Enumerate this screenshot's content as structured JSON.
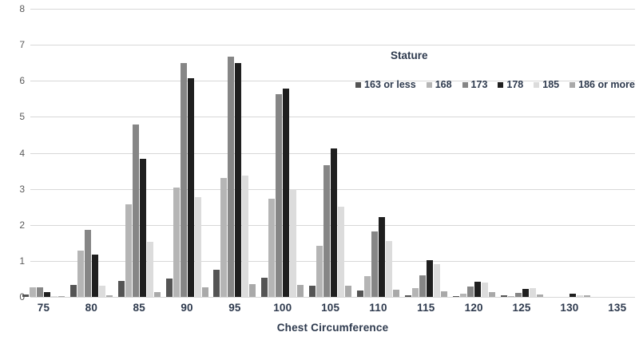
{
  "chart_data": {
    "type": "bar",
    "title": "",
    "legend_title": "Stature",
    "xlabel": "Chest Circumference",
    "ylabel": "",
    "grid": "horizontal",
    "legend_position": "top-right",
    "ylim": [
      0,
      8
    ],
    "yticks": [
      "0",
      "1",
      "2",
      "3",
      "4",
      "5",
      "6",
      "7",
      "8"
    ],
    "categories": [
      "75",
      "80",
      "85",
      "90",
      "95",
      "100",
      "105",
      "110",
      "115",
      "120",
      "125",
      "130",
      "135"
    ],
    "series": [
      {
        "name": "163 or less",
        "color": "#545454",
        "values": [
          0.07,
          0.33,
          0.45,
          0.52,
          0.75,
          0.53,
          0.3,
          0.17,
          0.05,
          0.02,
          0.05,
          0.0,
          0.0
        ]
      },
      {
        "name": "168",
        "color": "#b5b5b5",
        "values": [
          0.26,
          1.29,
          2.58,
          3.03,
          3.31,
          2.72,
          1.42,
          0.57,
          0.25,
          0.08,
          0.02,
          0.0,
          0.0
        ]
      },
      {
        "name": "173",
        "color": "#868686",
        "values": [
          0.26,
          1.86,
          4.79,
          6.5,
          6.68,
          5.63,
          3.65,
          1.81,
          0.6,
          0.28,
          0.1,
          0.0,
          0.0
        ]
      },
      {
        "name": "178",
        "color": "#1f1f1f",
        "values": [
          0.13,
          1.18,
          3.84,
          6.07,
          6.49,
          5.78,
          4.13,
          2.21,
          1.03,
          0.42,
          0.22,
          0.09,
          0.0
        ]
      },
      {
        "name": "185",
        "color": "#dcdcdc",
        "values": [
          0.03,
          0.31,
          1.53,
          2.77,
          3.36,
          3.0,
          2.5,
          1.56,
          0.9,
          0.4,
          0.25,
          0.05,
          0.0
        ]
      },
      {
        "name": "186 or more",
        "color": "#a9a9a9",
        "values": [
          0.02,
          0.05,
          0.13,
          0.27,
          0.35,
          0.33,
          0.3,
          0.2,
          0.15,
          0.13,
          0.07,
          0.04,
          0.0
        ]
      }
    ]
  },
  "colors": {
    "background": "#ffffff",
    "gridline": "#d8d8d8",
    "axis_tick_text": "#5a5a5a",
    "category_text": "#2e3a4e"
  }
}
